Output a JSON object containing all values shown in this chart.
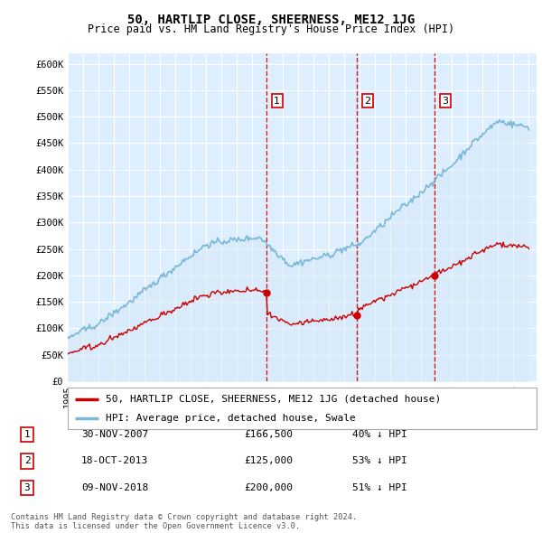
{
  "title": "50, HARTLIP CLOSE, SHEERNESS, ME12 1JG",
  "subtitle": "Price paid vs. HM Land Registry's House Price Index (HPI)",
  "footer": "Contains HM Land Registry data © Crown copyright and database right 2024.\nThis data is licensed under the Open Government Licence v3.0.",
  "legend_line1": "50, HARTLIP CLOSE, SHEERNESS, ME12 1JG (detached house)",
  "legend_line2": "HPI: Average price, detached house, Swale",
  "transactions": [
    {
      "num": 1,
      "date": "30-NOV-2007",
      "price": "£166,500",
      "pct": "40% ↓ HPI"
    },
    {
      "num": 2,
      "date": "18-OCT-2013",
      "price": "£125,000",
      "pct": "53% ↓ HPI"
    },
    {
      "num": 3,
      "date": "09-NOV-2018",
      "price": "£200,000",
      "pct": "51% ↓ HPI"
    }
  ],
  "vline_dates": [
    2007.917,
    2013.792,
    2018.856
  ],
  "sale_prices": [
    166500,
    125000,
    200000
  ],
  "sale_years": [
    2007.917,
    2013.792,
    2018.856
  ],
  "hpi_color": "#7ab8d8",
  "hpi_fill_color": "#d6eaf8",
  "price_color": "#cc0000",
  "vline_color": "#cc0000",
  "ylim": [
    0,
    620000
  ],
  "yticks": [
    0,
    50000,
    100000,
    150000,
    200000,
    250000,
    300000,
    350000,
    400000,
    450000,
    500000,
    550000,
    600000
  ],
  "background_color": "#ffffff",
  "chart_bg_color": "#ddeeff",
  "grid_color": "#ffffff"
}
